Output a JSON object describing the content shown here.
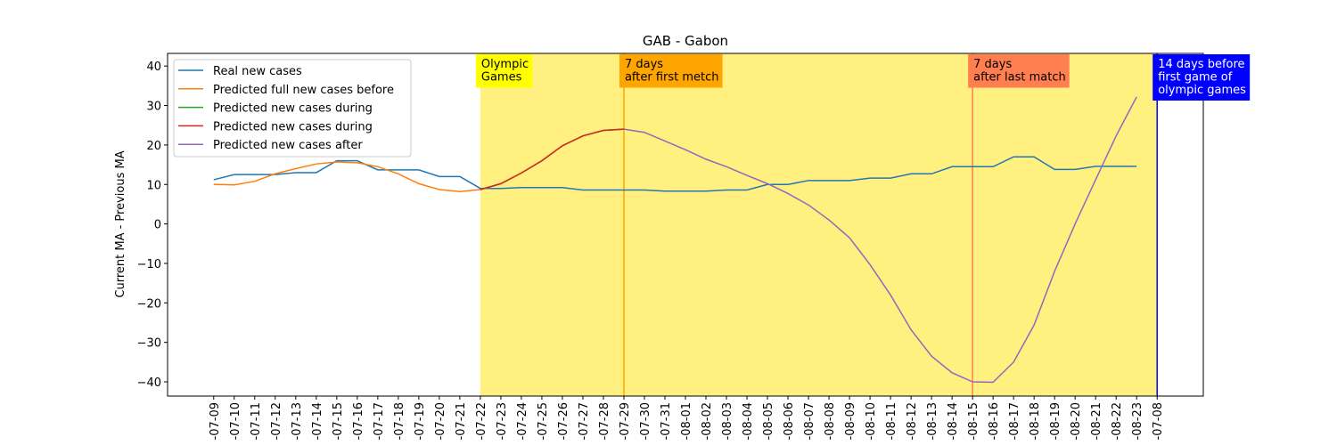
{
  "chart_data": {
    "type": "line",
    "title": "GAB - Gabon",
    "ylabel": "Current MA - Previous MA",
    "categories": [
      "-07-09",
      "-07-10",
      "-07-11",
      "-07-12",
      "-07-13",
      "-07-14",
      "-07-15",
      "-07-16",
      "-07-17",
      "-07-18",
      "-07-19",
      "-07-20",
      "-07-21",
      "-07-22",
      "-07-23",
      "-07-24",
      "-07-25",
      "-07-26",
      "-07-27",
      "-07-28",
      "-07-29",
      "-07-30",
      "-07-31",
      "-08-01",
      "-08-02",
      "-08-03",
      "-08-04",
      "-08-05",
      "-08-06",
      "-08-07",
      "-08-08",
      "-08-09",
      "-08-10",
      "-08-11",
      "-08-12",
      "-08-13",
      "-08-14",
      "-08-15",
      "-08-16",
      "-08-17",
      "-08-18",
      "-08-19",
      "-08-20",
      "-08-21",
      "-08-22",
      "-08-23",
      "-07-08"
    ],
    "series": [
      {
        "name": "Real new cases",
        "color": "#1f77b4",
        "values": [
          11.2,
          12.5,
          12.5,
          12.5,
          13,
          13,
          16,
          16,
          13.7,
          13.7,
          13.7,
          12,
          12,
          9,
          9,
          9.2,
          9.2,
          9.2,
          8.6,
          8.6,
          8.6,
          8.6,
          8.3,
          8.3,
          8.3,
          8.6,
          8.6,
          10,
          10,
          11,
          11,
          11,
          11.6,
          11.6,
          12.7,
          12.7,
          14.5,
          14.5,
          14.5,
          17,
          17,
          13.8,
          13.8,
          14.6,
          14.6,
          14.6,
          null
        ]
      },
      {
        "name": "Predicted full new cases before",
        "color": "#ff7f0e",
        "values": [
          10,
          9.9,
          10.8,
          12.7,
          14,
          15.2,
          15.7,
          15.5,
          14.5,
          12.7,
          10.2,
          8.7,
          8.2,
          8.7,
          10.2,
          12.9,
          16,
          19.8,
          22.3,
          23.7,
          24,
          null,
          null,
          null,
          null,
          null,
          null,
          null,
          null,
          null,
          null,
          null,
          null,
          null,
          null,
          null,
          null,
          null,
          null,
          null,
          null,
          null,
          null,
          null,
          null,
          null,
          null
        ]
      },
      {
        "name": "Predicted new cases during",
        "color": "#2ca02c",
        "values": [
          null,
          null,
          null,
          null,
          null,
          null,
          null,
          null,
          null,
          null,
          null,
          null,
          null,
          8.7,
          10.2,
          12.9,
          16,
          19.8,
          22.3,
          23.7,
          24,
          null,
          null,
          null,
          null,
          null,
          null,
          null,
          null,
          null,
          null,
          null,
          null,
          null,
          null,
          null,
          null,
          null,
          null,
          null,
          null,
          null,
          null,
          null,
          null,
          null,
          null
        ]
      },
      {
        "name": "Predicted new cases during",
        "color": "#d62728",
        "values": [
          null,
          null,
          null,
          null,
          null,
          null,
          null,
          null,
          null,
          null,
          null,
          null,
          null,
          8.7,
          10.2,
          12.9,
          16,
          19.8,
          22.3,
          23.7,
          24,
          null,
          null,
          null,
          null,
          null,
          null,
          null,
          null,
          null,
          null,
          null,
          null,
          null,
          null,
          null,
          null,
          null,
          null,
          null,
          null,
          null,
          null,
          null,
          null,
          null,
          null
        ]
      },
      {
        "name": "Predicted new cases after",
        "color": "#9467bd",
        "values": [
          null,
          null,
          null,
          null,
          null,
          null,
          null,
          null,
          null,
          null,
          null,
          null,
          null,
          null,
          null,
          null,
          null,
          null,
          null,
          null,
          24,
          23.2,
          21,
          18.8,
          16.4,
          14.5,
          12.3,
          10.2,
          7.7,
          4.8,
          1,
          -3.5,
          -10.3,
          -18,
          -26.8,
          -33.5,
          -37.7,
          -40,
          -40.1,
          -35,
          -25.6,
          -12,
          0,
          11.2,
          22.3,
          32.2,
          null
        ]
      }
    ],
    "ylim": [
      -43.6,
      43.2
    ],
    "yticks": [
      {
        "value": -40,
        "label": "−40"
      },
      {
        "value": -30,
        "label": "−30"
      },
      {
        "value": -20,
        "label": "−20"
      },
      {
        "value": -10,
        "label": "−10"
      },
      0,
      10,
      20,
      30,
      40
    ],
    "grid": false,
    "legend": "upper left",
    "span": {
      "from": "-07-22",
      "to": "-07-08",
      "color": "#fff080"
    },
    "markers": [
      {
        "x": "-07-22",
        "color": "#ffff00",
        "text_color": "#000000",
        "lines": [
          "Olympic",
          "Games"
        ],
        "line": false
      },
      {
        "x": "-07-29",
        "color": "#ffa500",
        "text_color": "#000000",
        "lines": [
          "7 days",
          "after first metch"
        ],
        "line": true
      },
      {
        "x": "-08-15",
        "color": "#ff7f50",
        "text_color": "#000000",
        "lines": [
          "7 days",
          "after last match"
        ],
        "line": true
      },
      {
        "x": "-07-08",
        "color": "#0000ff",
        "text_color": "#ffffff",
        "lines": [
          "14 days before",
          "first game of",
          "olympic games"
        ],
        "line": true
      }
    ]
  }
}
